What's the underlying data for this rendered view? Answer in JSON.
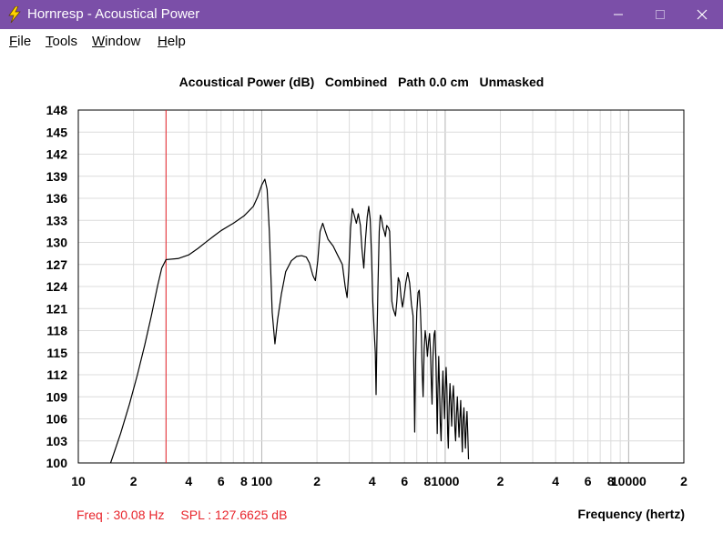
{
  "window": {
    "title": "Hornresp - Acoustical Power",
    "title_bar_color": "#7b4fa8",
    "controls": [
      "minimize-icon",
      "maximize-icon",
      "close-icon"
    ]
  },
  "menu": {
    "items": [
      {
        "label": "File"
      },
      {
        "label": "Tools"
      },
      {
        "label": "Window"
      },
      {
        "label": "Help"
      }
    ]
  },
  "readout": {
    "freq": "Freq : 30.08 Hz",
    "spl": "SPL : 127.6625 dB",
    "color": "#e8242b"
  },
  "chart_data": {
    "type": "line",
    "title": "Acoustical Power (dB)   Combined   Path 0.0 cm   Unmasked",
    "xlabel": "Frequency (hertz)",
    "ylabel": "",
    "xscale": "log",
    "xlim": [
      10,
      20000
    ],
    "ylim": [
      100,
      148
    ],
    "grid": true,
    "yticks": [
      "100",
      "103",
      "106",
      "109",
      "112",
      "115",
      "118",
      "121",
      "124",
      "127",
      "130",
      "133",
      "136",
      "139",
      "142",
      "145",
      "148"
    ],
    "xticks": [
      {
        "v": 10,
        "label": "10"
      },
      {
        "v": 20,
        "label": "2"
      },
      {
        "v": 40,
        "label": "4"
      },
      {
        "v": 60,
        "label": "6"
      },
      {
        "v": 80,
        "label": "8"
      },
      {
        "v": 100,
        "label": "100"
      },
      {
        "v": 200,
        "label": "2"
      },
      {
        "v": 400,
        "label": "4"
      },
      {
        "v": 600,
        "label": "6"
      },
      {
        "v": 800,
        "label": "8"
      },
      {
        "v": 1000,
        "label": "1000"
      },
      {
        "v": 2000,
        "label": "2"
      },
      {
        "v": 4000,
        "label": "4"
      },
      {
        "v": 6000,
        "label": "6"
      },
      {
        "v": 8000,
        "label": "8"
      },
      {
        "v": 10000,
        "label": "10000"
      },
      {
        "v": 20000,
        "label": "2"
      }
    ],
    "marker": {
      "freq": 30.08,
      "spl": 127.6625,
      "color": "#e8242b"
    },
    "series": [
      {
        "color": "#000000",
        "points": [
          [
            15,
            100
          ],
          [
            17,
            104
          ],
          [
            19,
            108
          ],
          [
            21,
            112
          ],
          [
            23,
            116
          ],
          [
            25,
            120
          ],
          [
            27,
            124
          ],
          [
            28.5,
            126.5
          ],
          [
            30.08,
            127.66
          ],
          [
            35,
            127.8
          ],
          [
            40,
            128.3
          ],
          [
            45,
            129.2
          ],
          [
            50,
            130.1
          ],
          [
            55,
            130.9
          ],
          [
            60,
            131.6
          ],
          [
            70,
            132.6
          ],
          [
            80,
            133.6
          ],
          [
            90,
            134.9
          ],
          [
            95,
            136.2
          ],
          [
            100,
            137.8
          ],
          [
            104,
            138.6
          ],
          [
            107,
            137.2
          ],
          [
            110,
            131.5
          ],
          [
            114,
            120.5
          ],
          [
            118,
            116.2
          ],
          [
            122,
            119.5
          ],
          [
            128,
            123.0
          ],
          [
            135,
            126.0
          ],
          [
            145,
            127.5
          ],
          [
            155,
            128.1
          ],
          [
            165,
            128.2
          ],
          [
            175,
            128.0
          ],
          [
            182,
            127.2
          ],
          [
            190,
            125.5
          ],
          [
            196,
            124.8
          ],
          [
            202,
            127.5
          ],
          [
            208,
            131.5
          ],
          [
            215,
            132.6
          ],
          [
            222,
            131.5
          ],
          [
            230,
            130.4
          ],
          [
            245,
            129.5
          ],
          [
            260,
            128.2
          ],
          [
            275,
            127.0
          ],
          [
            285,
            124.0
          ],
          [
            292,
            122.5
          ],
          [
            298,
            126.0
          ],
          [
            305,
            132.0
          ],
          [
            312,
            134.6
          ],
          [
            320,
            133.6
          ],
          [
            328,
            132.6
          ],
          [
            336,
            133.9
          ],
          [
            345,
            132.3
          ],
          [
            352,
            129.0
          ],
          [
            360,
            126.5
          ],
          [
            368,
            130.5
          ],
          [
            376,
            133.5
          ],
          [
            383,
            134.9
          ],
          [
            390,
            133.2
          ],
          [
            397,
            128.0
          ],
          [
            403,
            122.0
          ],
          [
            410,
            118.0
          ],
          [
            416,
            115.0
          ],
          [
            420,
            109.3
          ],
          [
            424,
            116.0
          ],
          [
            430,
            124.0
          ],
          [
            437,
            131.5
          ],
          [
            443,
            133.7
          ],
          [
            450,
            133.2
          ],
          [
            458,
            132.0
          ],
          [
            465,
            131.5
          ],
          [
            472,
            130.8
          ],
          [
            480,
            132.3
          ],
          [
            490,
            132.0
          ],
          [
            498,
            131.5
          ],
          [
            505,
            126.5
          ],
          [
            512,
            122.0
          ],
          [
            520,
            121.0
          ],
          [
            528,
            120.5
          ],
          [
            536,
            120.0
          ],
          [
            545,
            122.0
          ],
          [
            555,
            125.2
          ],
          [
            565,
            124.6
          ],
          [
            575,
            122.5
          ],
          [
            585,
            121.2
          ],
          [
            596,
            122.5
          ],
          [
            610,
            124.5
          ],
          [
            625,
            125.9
          ],
          [
            640,
            124.5
          ],
          [
            655,
            121.5
          ],
          [
            668,
            120.0
          ],
          [
            676,
            111.5
          ],
          [
            682,
            104.2
          ],
          [
            690,
            114.0
          ],
          [
            700,
            120.5
          ],
          [
            712,
            123.2
          ],
          [
            722,
            123.5
          ],
          [
            732,
            121.0
          ],
          [
            742,
            117.0
          ],
          [
            750,
            112.0
          ],
          [
            758,
            109.0
          ],
          [
            768,
            115.5
          ],
          [
            778,
            118.0
          ],
          [
            790,
            116.5
          ],
          [
            800,
            114.5
          ],
          [
            812,
            116.5
          ],
          [
            822,
            117.6
          ],
          [
            832,
            115.0
          ],
          [
            840,
            111.0
          ],
          [
            848,
            108.0
          ],
          [
            858,
            114.5
          ],
          [
            870,
            117.5
          ],
          [
            880,
            118.0
          ],
          [
            890,
            114.0
          ],
          [
            898,
            109.0
          ],
          [
            905,
            104.0
          ],
          [
            913,
            110.0
          ],
          [
            922,
            114.5
          ],
          [
            932,
            110.0
          ],
          [
            940,
            105.5
          ],
          [
            950,
            103.0
          ],
          [
            960,
            108.5
          ],
          [
            972,
            112.5
          ],
          [
            982,
            109.0
          ],
          [
            992,
            106.0
          ],
          [
            1002,
            110.0
          ],
          [
            1012,
            113.0
          ],
          [
            1022,
            110.0
          ],
          [
            1032,
            104.0
          ],
          [
            1040,
            102.0
          ],
          [
            1050,
            107.5
          ],
          [
            1062,
            110.8
          ],
          [
            1074,
            108.0
          ],
          [
            1085,
            105.0
          ],
          [
            1095,
            108.5
          ],
          [
            1108,
            110.5
          ],
          [
            1120,
            108.0
          ],
          [
            1130,
            104.5
          ],
          [
            1140,
            103.0
          ],
          [
            1152,
            106.5
          ],
          [
            1165,
            109.0
          ],
          [
            1178,
            106.0
          ],
          [
            1190,
            103.5
          ],
          [
            1202,
            106.0
          ],
          [
            1215,
            108.5
          ],
          [
            1228,
            104.5
          ],
          [
            1240,
            101.5
          ],
          [
            1252,
            106.0
          ],
          [
            1265,
            107.5
          ],
          [
            1278,
            104.5
          ],
          [
            1290,
            102.0
          ],
          [
            1302,
            105.0
          ],
          [
            1315,
            107.0
          ],
          [
            1328,
            104.0
          ],
          [
            1340,
            100.5
          ]
        ]
      }
    ]
  }
}
